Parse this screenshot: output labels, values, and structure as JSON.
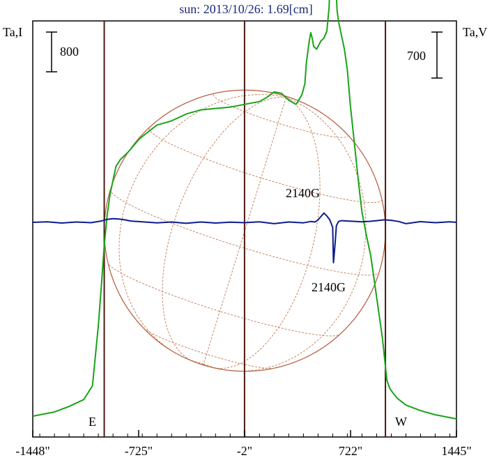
{
  "chart_data": {
    "type": "line",
    "title": "sun: 2013/10/26: 1.69[cm]",
    "ylabel_left": "Ta,I",
    "ylabel_right": "Ta,V",
    "scale_left": "800",
    "scale_right": "700",
    "x_ticks": [
      "-1448\"",
      "-725\"",
      "-2\"",
      "722\"",
      "1445\""
    ],
    "x_tick_values": [
      -1448,
      -725,
      -2,
      722,
      1445
    ],
    "xlim": [
      -1448,
      1445
    ],
    "limb_markers": [
      -960,
      960
    ],
    "center_marker": -2,
    "solar_radius_arcsec": 960,
    "east_label": "E",
    "west_label": "W",
    "annotations": [
      {
        "text": "2140G",
        "series": "I",
        "x": 570
      },
      {
        "text": "2140G",
        "series": "V",
        "x": 610
      }
    ],
    "ylim_I": [
      0,
      2450
    ],
    "ylim_V": [
      -580,
      580
    ],
    "series": [
      {
        "id": "I",
        "color": "#19a319",
        "x": [
          -1448,
          -1300,
          -1200,
          -1100,
          -1040,
          -1000,
          -975,
          -960,
          -940,
          -920,
          -900,
          -880,
          -850,
          -800,
          -720,
          -600,
          -500,
          -400,
          -300,
          -200,
          -100,
          0,
          100,
          150,
          200,
          250,
          300,
          350,
          390,
          410,
          420,
          430,
          440,
          450,
          460,
          470,
          490,
          520,
          540,
          560,
          575,
          585,
          600,
          610,
          620,
          630,
          640,
          650,
          660,
          680,
          700,
          720,
          740,
          760,
          780,
          800,
          830,
          860,
          880,
          900,
          920,
          940,
          955,
          970,
          990,
          1010,
          1040,
          1100,
          1200,
          1300,
          1400,
          1445
        ],
        "values": [
          40,
          70,
          110,
          160,
          260,
          700,
          1050,
          1280,
          1500,
          1650,
          1750,
          1850,
          1900,
          1950,
          2050,
          2150,
          2180,
          2230,
          2260,
          2270,
          2280,
          2300,
          2320,
          2350,
          2390,
          2380,
          2330,
          2300,
          2370,
          2450,
          2600,
          2680,
          2760,
          2820,
          2780,
          2720,
          2700,
          2760,
          2780,
          2830,
          3000,
          3300,
          3800,
          3600,
          3200,
          2980,
          2900,
          2850,
          2800,
          2700,
          2550,
          2300,
          2100,
          1900,
          1700,
          1520,
          1350,
          1200,
          1050,
          900,
          750,
          600,
          450,
          300,
          240,
          210,
          170,
          120,
          80,
          50,
          30,
          20
        ]
      },
      {
        "id": "V",
        "color": "#0c1a8c",
        "x": [
          -1448,
          -1350,
          -1250,
          -1150,
          -1050,
          -980,
          -940,
          -900,
          -860,
          -820,
          -780,
          -700,
          -600,
          -500,
          -400,
          -300,
          -200,
          -100,
          0,
          100,
          200,
          300,
          400,
          450,
          480,
          500,
          520,
          540,
          560,
          580,
          600,
          605,
          615,
          625,
          640,
          660,
          700,
          750,
          800,
          850,
          900,
          950,
          1000,
          1050,
          1100,
          1200,
          1300,
          1400,
          1445
        ],
        "values": [
          0,
          3,
          -4,
          2,
          -2,
          8,
          18,
          22,
          20,
          15,
          8,
          3,
          -3,
          2,
          -6,
          2,
          -4,
          1,
          -2,
          3,
          -8,
          2,
          -3,
          5,
          2,
          15,
          35,
          55,
          38,
          15,
          -30,
          -240,
          -140,
          -20,
          5,
          10,
          8,
          6,
          3,
          6,
          10,
          15,
          12,
          5,
          -8,
          4,
          -2,
          3,
          0
        ]
      }
    ]
  }
}
